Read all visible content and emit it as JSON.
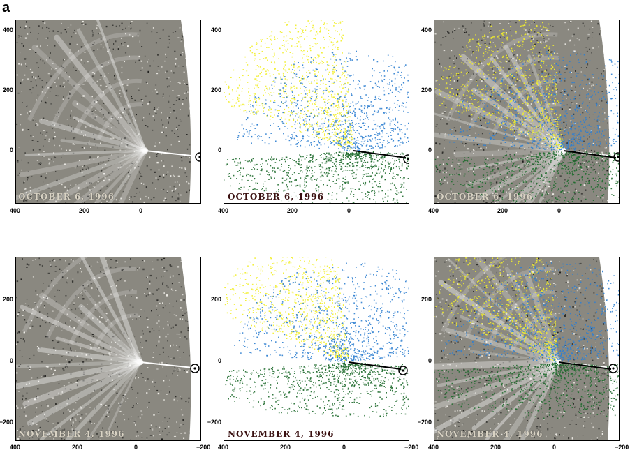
{
  "figure_label": "a",
  "rows": [
    {
      "id": "oct",
      "x_ticks": [
        "400",
        "200",
        "0"
      ],
      "y_ticks": [
        "400",
        "200",
        "0"
      ],
      "panels": [
        {
          "kind": "photo",
          "date_label": "OCTOBER 6, 1996"
        },
        {
          "kind": "simulation",
          "date_label": "OCTOBER 6, 1996"
        },
        {
          "kind": "overlay",
          "date_label": "OCTOBER 6, 1996"
        }
      ]
    },
    {
      "id": "nov",
      "x_ticks": [
        "400",
        "200",
        "0",
        "−200"
      ],
      "y_ticks": [
        "200",
        "0",
        "−200"
      ],
      "panels": [
        {
          "kind": "photo",
          "date_label": "NOVEMBER 4, 1996"
        },
        {
          "kind": "simulation",
          "date_label": "NOVEMBER 4, 1996"
        },
        {
          "kind": "overlay",
          "date_label": "NOVEMBER 4, 1996"
        }
      ]
    }
  ],
  "colors": {
    "yellow_dust": "#f2ee2a",
    "blue_dust": "#2f7fd0",
    "green_dust": "#1f6b2e",
    "photo_gray": "#8a8880"
  },
  "icons": [
    "sun-symbol-icon"
  ]
}
